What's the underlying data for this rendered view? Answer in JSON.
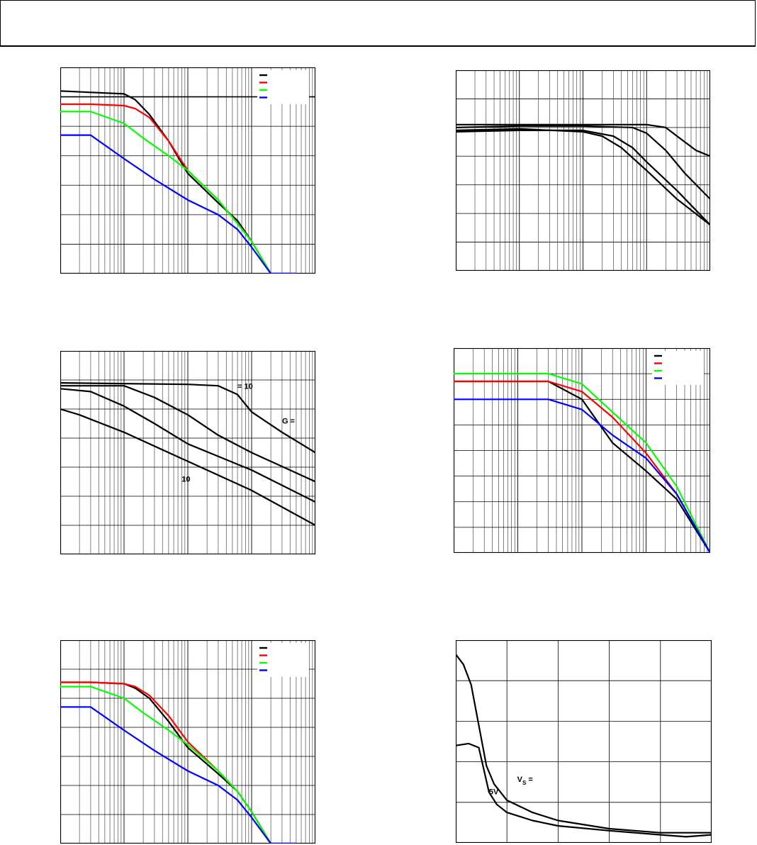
{
  "header": {
    "title": ""
  },
  "colors": {
    "black": "#000000",
    "red": "#ff0000",
    "green": "#00ff00",
    "blue": "#0000ff"
  },
  "chart_data": [
    {
      "id": "chart1",
      "type": "line",
      "x_scale": "log",
      "xlim": [
        0.1,
        1000
      ],
      "ylim": [
        0,
        7
      ],
      "grid": true,
      "legend": "top-right",
      "series": [
        {
          "color": "#000000",
          "x": [
            0.1,
            0.3,
            1,
            1.5,
            2.5,
            5,
            10,
            30,
            60,
            100,
            200,
            500
          ],
          "y": [
            6.2,
            6.15,
            6.1,
            5.9,
            5.4,
            4.5,
            3.4,
            2.4,
            1.8,
            1.1,
            0.0,
            0.0
          ]
        },
        {
          "color": "#ff0000",
          "x": [
            0.1,
            0.3,
            1,
            1.5,
            2.5,
            5,
            10,
            30,
            60,
            100,
            200,
            500
          ],
          "y": [
            5.75,
            5.75,
            5.7,
            5.6,
            5.3,
            4.5,
            3.5,
            2.5,
            1.7,
            1.1,
            0.0,
            0.0
          ]
        },
        {
          "color": "#00ff00",
          "x": [
            0.1,
            0.3,
            1,
            2,
            5,
            10,
            30,
            60,
            100,
            200,
            500
          ],
          "y": [
            5.5,
            5.5,
            5.1,
            4.6,
            4.0,
            3.5,
            2.5,
            1.7,
            1.1,
            0.0,
            0.0
          ]
        },
        {
          "color": "#0000ff",
          "x": [
            0.1,
            0.3,
            1,
            3,
            10,
            30,
            60,
            100,
            200,
            500
          ],
          "y": [
            4.7,
            4.7,
            3.9,
            3.2,
            2.5,
            2.0,
            1.5,
            0.9,
            0.0,
            0.0
          ]
        }
      ],
      "hline": 6.0
    },
    {
      "id": "chart2",
      "type": "line",
      "x_scale": "log",
      "xlim": [
        0.1,
        1000
      ],
      "ylim": [
        0,
        7
      ],
      "grid": true,
      "series": [
        {
          "color": "#000000",
          "x": [
            0.1,
            1,
            10,
            100,
            200,
            300,
            600,
            1000
          ],
          "y": [
            5.1,
            5.1,
            5.1,
            5.1,
            5.0,
            4.7,
            4.2,
            4.0
          ]
        },
        {
          "color": "#000000",
          "x": [
            0.1,
            1,
            10,
            60,
            100,
            200,
            400,
            1000
          ],
          "y": [
            5.0,
            5.05,
            5.05,
            5.0,
            4.8,
            4.2,
            3.4,
            2.5
          ]
        },
        {
          "color": "#000000",
          "x": [
            0.1,
            1,
            10,
            30,
            60,
            100,
            300,
            1000
          ],
          "y": [
            4.85,
            4.9,
            4.9,
            4.7,
            4.3,
            3.8,
            2.8,
            1.6
          ]
        },
        {
          "color": "#000000",
          "x": [
            0.1,
            1,
            10,
            20,
            40,
            100,
            300,
            1000
          ],
          "y": [
            4.9,
            4.95,
            4.85,
            4.7,
            4.3,
            3.5,
            2.5,
            1.6
          ]
        }
      ]
    },
    {
      "id": "chart3",
      "type": "line",
      "x_scale": "log",
      "xlim": [
        0.1,
        1000
      ],
      "ylim": [
        0,
        7
      ],
      "grid": true,
      "series": [
        {
          "color": "#000000",
          "x": [
            0.1,
            10,
            30,
            60,
            100,
            300,
            1000
          ],
          "y": [
            5.9,
            5.85,
            5.8,
            5.5,
            4.9,
            4.2,
            3.5
          ]
        },
        {
          "color": "#000000",
          "x": [
            0.1,
            1,
            3,
            10,
            30,
            100,
            1000
          ],
          "y": [
            5.8,
            5.8,
            5.4,
            4.8,
            4.1,
            3.5,
            2.5
          ]
        },
        {
          "color": "#000000",
          "x": [
            0.1,
            0.3,
            1,
            3,
            10,
            100,
            1000
          ],
          "y": [
            5.7,
            5.6,
            5.1,
            4.5,
            3.8,
            2.9,
            1.8
          ]
        },
        {
          "color": "#000000",
          "x": [
            0.1,
            0.2,
            1,
            10,
            100,
            1000
          ],
          "y": [
            5.0,
            4.8,
            4.2,
            3.2,
            2.2,
            1.0
          ]
        }
      ],
      "annotations": [
        {
          "text": "= 10",
          "data_x": 60,
          "data_y": 5.7
        },
        {
          "text": "G =",
          "data_x": 300,
          "data_y": 4.5
        },
        {
          "text": "10",
          "data_x": 8,
          "data_y": 2.5
        }
      ]
    },
    {
      "id": "chart4",
      "type": "line",
      "x_scale": "log",
      "xlim": [
        0.1,
        1000
      ],
      "ylim": [
        0,
        8
      ],
      "grid": true,
      "legend": "top-right",
      "series": [
        {
          "color": "#000000",
          "x": [
            0.1,
            3,
            10,
            30,
            100,
            300,
            1000
          ],
          "y": [
            6.7,
            6.7,
            6.0,
            4.3,
            3.2,
            2.1,
            0.0
          ]
        },
        {
          "color": "#ff0000",
          "x": [
            0.1,
            3,
            10,
            30,
            100,
            300,
            1000
          ],
          "y": [
            6.7,
            6.7,
            6.3,
            5.3,
            3.9,
            2.3,
            0.0
          ]
        },
        {
          "color": "#00ff00",
          "x": [
            0.1,
            3,
            10,
            30,
            100,
            300,
            1000
          ],
          "y": [
            7.0,
            7.0,
            6.6,
            5.5,
            4.3,
            2.6,
            0.0
          ]
        },
        {
          "color": "#0000ff",
          "x": [
            0.1,
            3,
            10,
            30,
            100,
            300,
            1000
          ],
          "y": [
            6.0,
            6.0,
            5.6,
            4.6,
            3.7,
            2.3,
            0.0
          ]
        }
      ]
    },
    {
      "id": "chart5",
      "type": "line",
      "x_scale": "log",
      "xlim": [
        0.1,
        1000
      ],
      "ylim": [
        0,
        7
      ],
      "grid": true,
      "legend": "top-right",
      "series": [
        {
          "color": "#000000",
          "x": [
            0.1,
            0.3,
            1,
            1.5,
            2.5,
            5,
            10,
            30,
            60,
            100,
            200,
            500
          ],
          "y": [
            5.55,
            5.55,
            5.5,
            5.35,
            5.0,
            4.2,
            3.3,
            2.4,
            1.8,
            1.1,
            0.0,
            0.0
          ]
        },
        {
          "color": "#ff0000",
          "x": [
            0.1,
            0.3,
            1,
            1.5,
            2.5,
            5,
            10,
            30,
            60,
            100,
            200,
            500
          ],
          "y": [
            5.55,
            5.55,
            5.5,
            5.4,
            5.1,
            4.4,
            3.5,
            2.5,
            1.8,
            1.1,
            0.0,
            0.0
          ]
        },
        {
          "color": "#00ff00",
          "x": [
            0.1,
            0.3,
            1,
            2,
            5,
            10,
            30,
            60,
            100,
            200,
            500
          ],
          "y": [
            5.4,
            5.4,
            5.0,
            4.5,
            3.9,
            3.4,
            2.5,
            1.8,
            1.1,
            0.0,
            0.0
          ]
        },
        {
          "color": "#0000ff",
          "x": [
            0.1,
            0.3,
            1,
            3,
            10,
            30,
            60,
            100,
            200,
            500
          ],
          "y": [
            4.7,
            4.7,
            3.9,
            3.2,
            2.5,
            2.0,
            1.5,
            0.9,
            0.0,
            0.0
          ]
        }
      ]
    },
    {
      "id": "chart6",
      "type": "line",
      "x_scale": "linear",
      "xlim": [
        0,
        5
      ],
      "ylim": [
        0,
        5
      ],
      "grid": true,
      "series": [
        {
          "color": "#000000",
          "x": [
            0,
            0.15,
            0.3,
            0.45,
            0.6,
            0.75,
            1.0,
            1.5,
            2,
            3,
            4,
            5
          ],
          "y": [
            4.65,
            4.4,
            3.9,
            2.9,
            1.9,
            1.45,
            1.05,
            0.75,
            0.55,
            0.35,
            0.25,
            0.25
          ]
        },
        {
          "color": "#000000",
          "x": [
            0,
            0.25,
            0.45,
            0.55,
            0.65,
            0.8,
            1.0,
            1.5,
            2,
            3,
            4,
            4.5,
            5
          ],
          "y": [
            2.4,
            2.45,
            2.35,
            1.8,
            1.25,
            0.95,
            0.75,
            0.55,
            0.42,
            0.3,
            0.2,
            0.15,
            0.2
          ]
        }
      ],
      "annotations": [
        {
          "text": "V",
          "sub": "S",
          "suffix": " =",
          "data_x": 1.2,
          "data_y": 1.5
        },
        {
          "text": "5V",
          "data_x": 0.65,
          "data_y": 1.2
        }
      ]
    }
  ]
}
